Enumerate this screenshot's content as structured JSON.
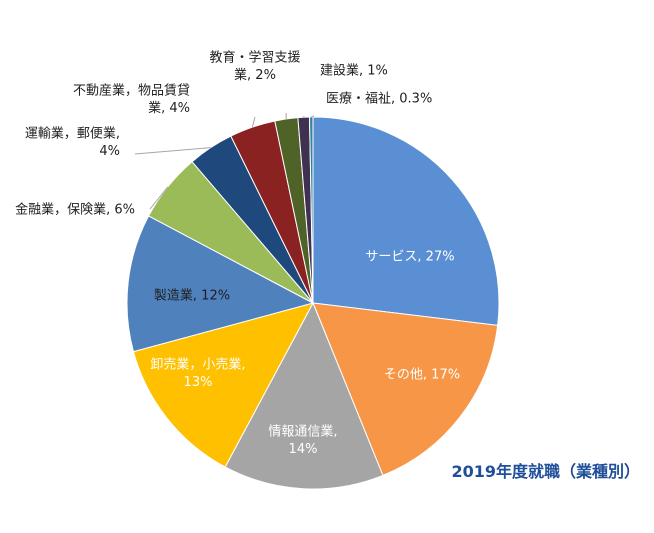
{
  "chart_data": {
    "type": "pie",
    "title": "2019年度就職（業種別）",
    "series": [
      {
        "name": "業種別",
        "categories": [
          "サービス",
          "その他",
          "情報通信業",
          "卸売業，小売業",
          "製造業",
          "金融業，保険業",
          "運輸業，郵便業",
          "不動産業，物品賃貸業",
          "教育・学習支援業",
          "建設業",
          "医療・福祉"
        ],
        "values": [
          27,
          17,
          14,
          13,
          12,
          6,
          4,
          4,
          2,
          1,
          0.3
        ]
      }
    ],
    "labels": [
      {
        "lines": [
          "サービス, 27%"
        ]
      },
      {
        "lines": [
          "その他, 17%"
        ]
      },
      {
        "lines": [
          "情報通信業,",
          "14%"
        ]
      },
      {
        "lines": [
          "卸売業，小売業,",
          "13%"
        ]
      },
      {
        "lines": [
          "製造業, 12%"
        ]
      },
      {
        "lines": [
          "金融業，保険業, 6%"
        ]
      },
      {
        "lines": [
          "運輸業，郵便業,",
          "4%"
        ]
      },
      {
        "lines": [
          "不動産業，物品賃貸",
          "業, 4%"
        ]
      },
      {
        "lines": [
          "教育・学習支援",
          "業, 2%"
        ]
      },
      {
        "lines": [
          "建設業, 1%"
        ]
      },
      {
        "lines": [
          "医療・福祉, 0.3%"
        ]
      }
    ],
    "colors": [
      "#5b8fd4",
      "#f79646",
      "#a5a5a5",
      "#ffc000",
      "#4f81bd",
      "#9bbb59",
      "#1f497d",
      "#8b2222",
      "#4f6228",
      "#403151",
      "#31859c"
    ],
    "label_colors": [
      "#ffffff",
      "#ffffff",
      "#ffffff",
      "#ffffff",
      "#1f1f1f",
      "#1f1f1f",
      "#1f1f1f",
      "#1f1f1f",
      "#1f1f1f",
      "#1f1f1f",
      "#1f1f1f"
    ],
    "legend": "none"
  }
}
